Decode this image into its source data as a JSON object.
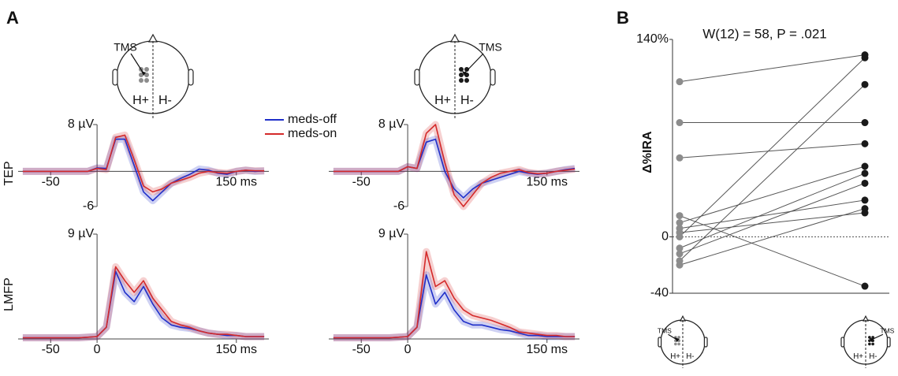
{
  "labels": {
    "panel_a": "A",
    "panel_b": "B"
  },
  "heads": [
    {
      "stim": "TMS",
      "left": "H+",
      "right": "H-"
    },
    {
      "stim": "TMS",
      "left": "H+",
      "right": "H-"
    },
    {
      "stim": "TMS",
      "left": "H+",
      "right": "H-"
    },
    {
      "stim": "TMS",
      "left": "H+",
      "right": "H-"
    }
  ],
  "chart_data": [
    {
      "type": "line",
      "ylabel": "TEP",
      "x": [
        -80,
        -70,
        -60,
        -50,
        -40,
        -30,
        -20,
        -10,
        0,
        10,
        20,
        30,
        40,
        50,
        60,
        70,
        80,
        90,
        100,
        110,
        120,
        130,
        140,
        150,
        160,
        170,
        180
      ],
      "xlim": [
        -85,
        185
      ],
      "xticks": [
        {
          "value": -50,
          "label": "-50"
        },
        {
          "value": 150,
          "label": "150 ms"
        }
      ],
      "ylim": [
        -6,
        8
      ],
      "yticks": [
        {
          "value": 8,
          "label": "8 µV"
        },
        {
          "value": -6,
          "label": "-6"
        }
      ],
      "series": [
        {
          "name": "meds-off",
          "color": "#1f2fc9",
          "values": [
            0,
            0,
            0,
            0,
            0,
            0,
            0,
            0,
            0.6,
            0.5,
            5.5,
            5.5,
            1,
            -3.5,
            -5,
            -3.5,
            -2,
            -1.2,
            -0.5,
            0.4,
            0.2,
            -0.3,
            -0.5,
            0,
            0.2,
            0,
            0.1
          ]
        },
        {
          "name": "meds-on",
          "color": "#d42a2a",
          "values": [
            0,
            0,
            0,
            0,
            0,
            0,
            0,
            0,
            0.5,
            0.3,
            5.8,
            6.2,
            2,
            -2.5,
            -3.5,
            -3,
            -2,
            -1.5,
            -1,
            -0.3,
            0,
            -0.2,
            -0.3,
            0,
            0.2,
            0.1,
            0.1
          ]
        }
      ]
    },
    {
      "type": "line",
      "x": [
        -80,
        -70,
        -60,
        -50,
        -40,
        -30,
        -20,
        -10,
        0,
        10,
        20,
        30,
        40,
        50,
        60,
        70,
        80,
        90,
        100,
        110,
        120,
        130,
        140,
        150,
        160,
        170,
        180
      ],
      "xlim": [
        -85,
        185
      ],
      "xticks": [
        {
          "value": -50,
          "label": "-50"
        },
        {
          "value": 150,
          "label": "150 ms"
        }
      ],
      "ylim": [
        -6,
        8
      ],
      "yticks": [
        {
          "value": 8,
          "label": "8 µV"
        },
        {
          "value": -6,
          "label": "-6"
        }
      ],
      "series": [
        {
          "color": "#1f2fc9",
          "values": [
            0,
            0,
            0,
            0,
            0,
            0,
            0,
            0,
            0.8,
            0.5,
            5,
            5.5,
            0,
            -3,
            -4.5,
            -3,
            -2,
            -1.5,
            -1,
            -0.5,
            0,
            -0.3,
            -0.5,
            -0.3,
            0,
            0.3,
            0.5
          ]
        },
        {
          "color": "#d42a2a",
          "values": [
            0,
            0,
            0,
            0,
            0,
            0,
            0,
            0,
            0.8,
            0.5,
            6.5,
            8,
            1.5,
            -4,
            -6,
            -4,
            -2,
            -1,
            -0.3,
            0,
            0.3,
            -0.2,
            -0.4,
            -0.3,
            0,
            0.2,
            0.4
          ]
        }
      ]
    },
    {
      "type": "line",
      "ylabel": "LMFP",
      "x": [
        -80,
        -70,
        -60,
        -50,
        -40,
        -30,
        -20,
        -10,
        0,
        10,
        20,
        30,
        40,
        50,
        60,
        70,
        80,
        90,
        100,
        110,
        120,
        130,
        140,
        150,
        160,
        170,
        180
      ],
      "xlim": [
        -85,
        185
      ],
      "xticks": [
        {
          "value": -50,
          "label": "-50"
        },
        0,
        {
          "value": 150,
          "label": "150 ms"
        }
      ],
      "ylim": [
        0,
        9
      ],
      "yticks": [
        {
          "value": 9,
          "label": "9 µV"
        }
      ],
      "series": [
        {
          "color": "#1f2fc9",
          "values": [
            0.1,
            0.1,
            0.1,
            0.1,
            0.1,
            0.1,
            0.1,
            0.15,
            0.2,
            1,
            5.8,
            4,
            3.2,
            4.5,
            3,
            1.8,
            1.2,
            1,
            0.9,
            0.7,
            0.5,
            0.4,
            0.3,
            0.3,
            0.2,
            0.2,
            0.2
          ]
        },
        {
          "color": "#d42a2a",
          "values": [
            0.1,
            0.1,
            0.1,
            0.1,
            0.1,
            0.1,
            0.1,
            0.15,
            0.2,
            1,
            6.2,
            5,
            4,
            5,
            3.5,
            2.5,
            1.5,
            1.2,
            1,
            0.7,
            0.5,
            0.4,
            0.4,
            0.3,
            0.2,
            0.2,
            0.2
          ]
        }
      ]
    },
    {
      "type": "line",
      "x": [
        -80,
        -70,
        -60,
        -50,
        -40,
        -30,
        -20,
        -10,
        0,
        10,
        20,
        30,
        40,
        50,
        60,
        70,
        80,
        90,
        100,
        110,
        120,
        130,
        140,
        150,
        160,
        170,
        180
      ],
      "xlim": [
        -85,
        185
      ],
      "xticks": [
        {
          "value": -50,
          "label": "-50"
        },
        0,
        {
          "value": 150,
          "label": "150 ms"
        }
      ],
      "ylim": [
        0,
        9
      ],
      "yticks": [
        {
          "value": 9,
          "label": "9 µV"
        }
      ],
      "series": [
        {
          "color": "#1f2fc9",
          "values": [
            0.1,
            0.1,
            0.1,
            0.1,
            0.1,
            0.1,
            0.1,
            0.15,
            0.2,
            1,
            5.5,
            3,
            4,
            2.5,
            1.5,
            1.2,
            1.2,
            1,
            0.8,
            0.7,
            0.5,
            0.3,
            0.3,
            0.2,
            0.2,
            0.2,
            0.2
          ]
        },
        {
          "color": "#d42a2a",
          "values": [
            0.1,
            0.1,
            0.1,
            0.1,
            0.1,
            0.1,
            0.1,
            0.15,
            0.2,
            1,
            7.5,
            4.5,
            5,
            3.5,
            2.5,
            2,
            1.8,
            1.6,
            1.3,
            1,
            0.6,
            0.5,
            0.4,
            0.3,
            0.3,
            0.2,
            0.2
          ]
        }
      ]
    },
    {
      "type": "paired",
      "title": "W(12) = 58, P = .021",
      "ylabel": "Δ%IRA",
      "ylim": [
        -40,
        140
      ],
      "yticks": [
        {
          "value": 140,
          "label": "140%"
        },
        0,
        -40
      ],
      "before": {
        "color": "#8c8c8c",
        "values": [
          110,
          81,
          56,
          15,
          10,
          6,
          3,
          0,
          -8,
          -12,
          -17,
          -20
        ]
      },
      "after": {
        "color": "#1a1a1a",
        "values": [
          129,
          81,
          66,
          -35,
          50,
          26,
          17,
          127,
          45,
          38,
          108,
          20
        ]
      }
    }
  ]
}
